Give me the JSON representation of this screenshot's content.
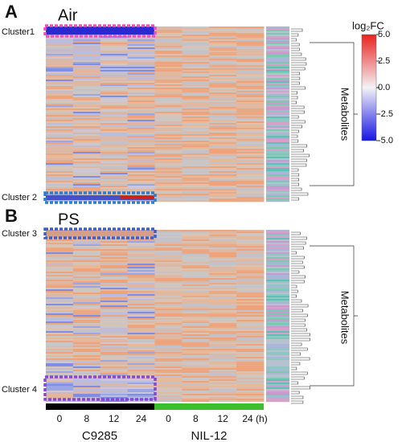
{
  "panels": [
    {
      "letter": "A",
      "title": "Air",
      "clusters": [
        "Cluster1",
        "Cluster 2"
      ],
      "axis_label": "Metabolites"
    },
    {
      "letter": "B",
      "title": "PS",
      "clusters": [
        "Cluster 3",
        "Cluster 4"
      ],
      "axis_label": "Metabolites"
    }
  ],
  "colorbar": {
    "label": "log₂FC",
    "lim": [
      -5,
      5
    ],
    "ticks": [
      {
        "value": 5,
        "label": "5.0"
      },
      {
        "value": 2.5,
        "label": "2.5"
      },
      {
        "value": 0,
        "label": "0.0"
      },
      {
        "value": -2.5,
        "label": "-2.5"
      },
      {
        "value": -5,
        "label": "-5.0"
      }
    ]
  },
  "x_axis": {
    "times": [
      "0",
      "8",
      "12",
      "24",
      "0",
      "8",
      "12",
      "24 (h)"
    ],
    "groups": [
      "C9285",
      "NIL-12"
    ]
  }
}
